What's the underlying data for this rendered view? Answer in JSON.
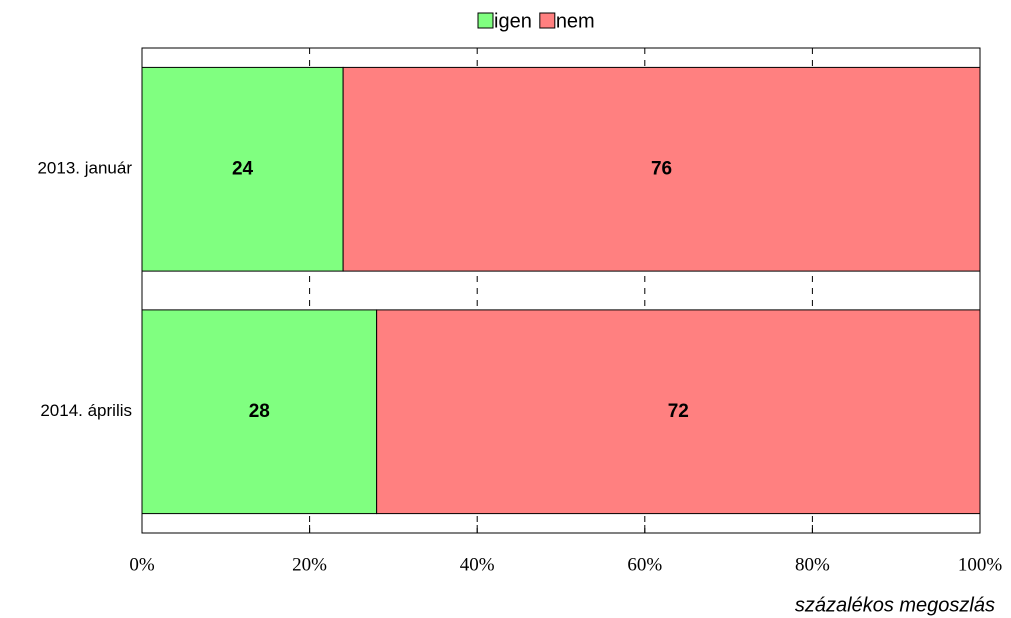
{
  "chart_data": {
    "type": "stacked-bar-horizontal",
    "categories": [
      "2013. január",
      "2014. április"
    ],
    "series": [
      {
        "name": "igen",
        "color": "#80ff80",
        "values": [
          24,
          28
        ]
      },
      {
        "name": "nem",
        "color": "#ff8080",
        "values": [
          76,
          72
        ]
      }
    ],
    "xlim": [
      0,
      100
    ],
    "xticks": [
      {
        "value": 0,
        "label": "0%"
      },
      {
        "value": 20,
        "label": "20%"
      },
      {
        "value": 40,
        "label": "40%"
      },
      {
        "value": 60,
        "label": "60%"
      },
      {
        "value": 80,
        "label": "80%"
      },
      {
        "value": 100,
        "label": "100%"
      }
    ],
    "xlabel": "százalékos megoszlás",
    "grid": true,
    "legend": "top"
  }
}
